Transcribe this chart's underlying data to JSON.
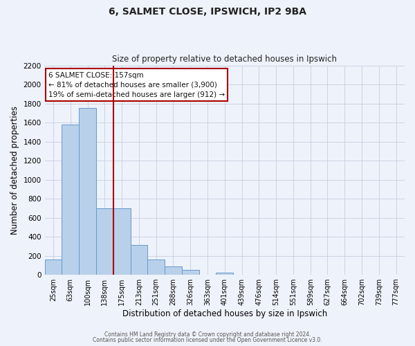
{
  "title": "6, SALMET CLOSE, IPSWICH, IP2 9BA",
  "subtitle": "Size of property relative to detached houses in Ipswich",
  "xlabel": "Distribution of detached houses by size in Ipswich",
  "ylabel": "Number of detached properties",
  "bar_labels": [
    "25sqm",
    "63sqm",
    "100sqm",
    "138sqm",
    "175sqm",
    "213sqm",
    "251sqm",
    "288sqm",
    "326sqm",
    "363sqm",
    "401sqm",
    "439sqm",
    "476sqm",
    "514sqm",
    "551sqm",
    "589sqm",
    "627sqm",
    "664sqm",
    "702sqm",
    "739sqm",
    "777sqm"
  ],
  "bar_values": [
    160,
    1580,
    1750,
    700,
    700,
    315,
    160,
    90,
    50,
    0,
    25,
    0,
    0,
    0,
    0,
    0,
    0,
    0,
    0,
    0,
    0
  ],
  "bar_color": "#b8d0ea",
  "bar_edge_color": "#6699cc",
  "vline_pos": 3.5,
  "vline_color": "#aa0000",
  "annotation_line1": "6 SALMET CLOSE: 157sqm",
  "annotation_line2": "← 81% of detached houses are smaller (3,900)",
  "annotation_line3": "19% of semi-detached houses are larger (912) →",
  "annotation_box_facecolor": "#ffffff",
  "annotation_box_edgecolor": "#aa0000",
  "ylim": [
    0,
    2200
  ],
  "yticks": [
    0,
    200,
    400,
    600,
    800,
    1000,
    1200,
    1400,
    1600,
    1800,
    2000,
    2200
  ],
  "background_color": "#eef2fa",
  "grid_color": "#c5cde0",
  "footer_line1": "Contains HM Land Registry data © Crown copyright and database right 2024.",
  "footer_line2": "Contains public sector information licensed under the Open Government Licence v3.0."
}
